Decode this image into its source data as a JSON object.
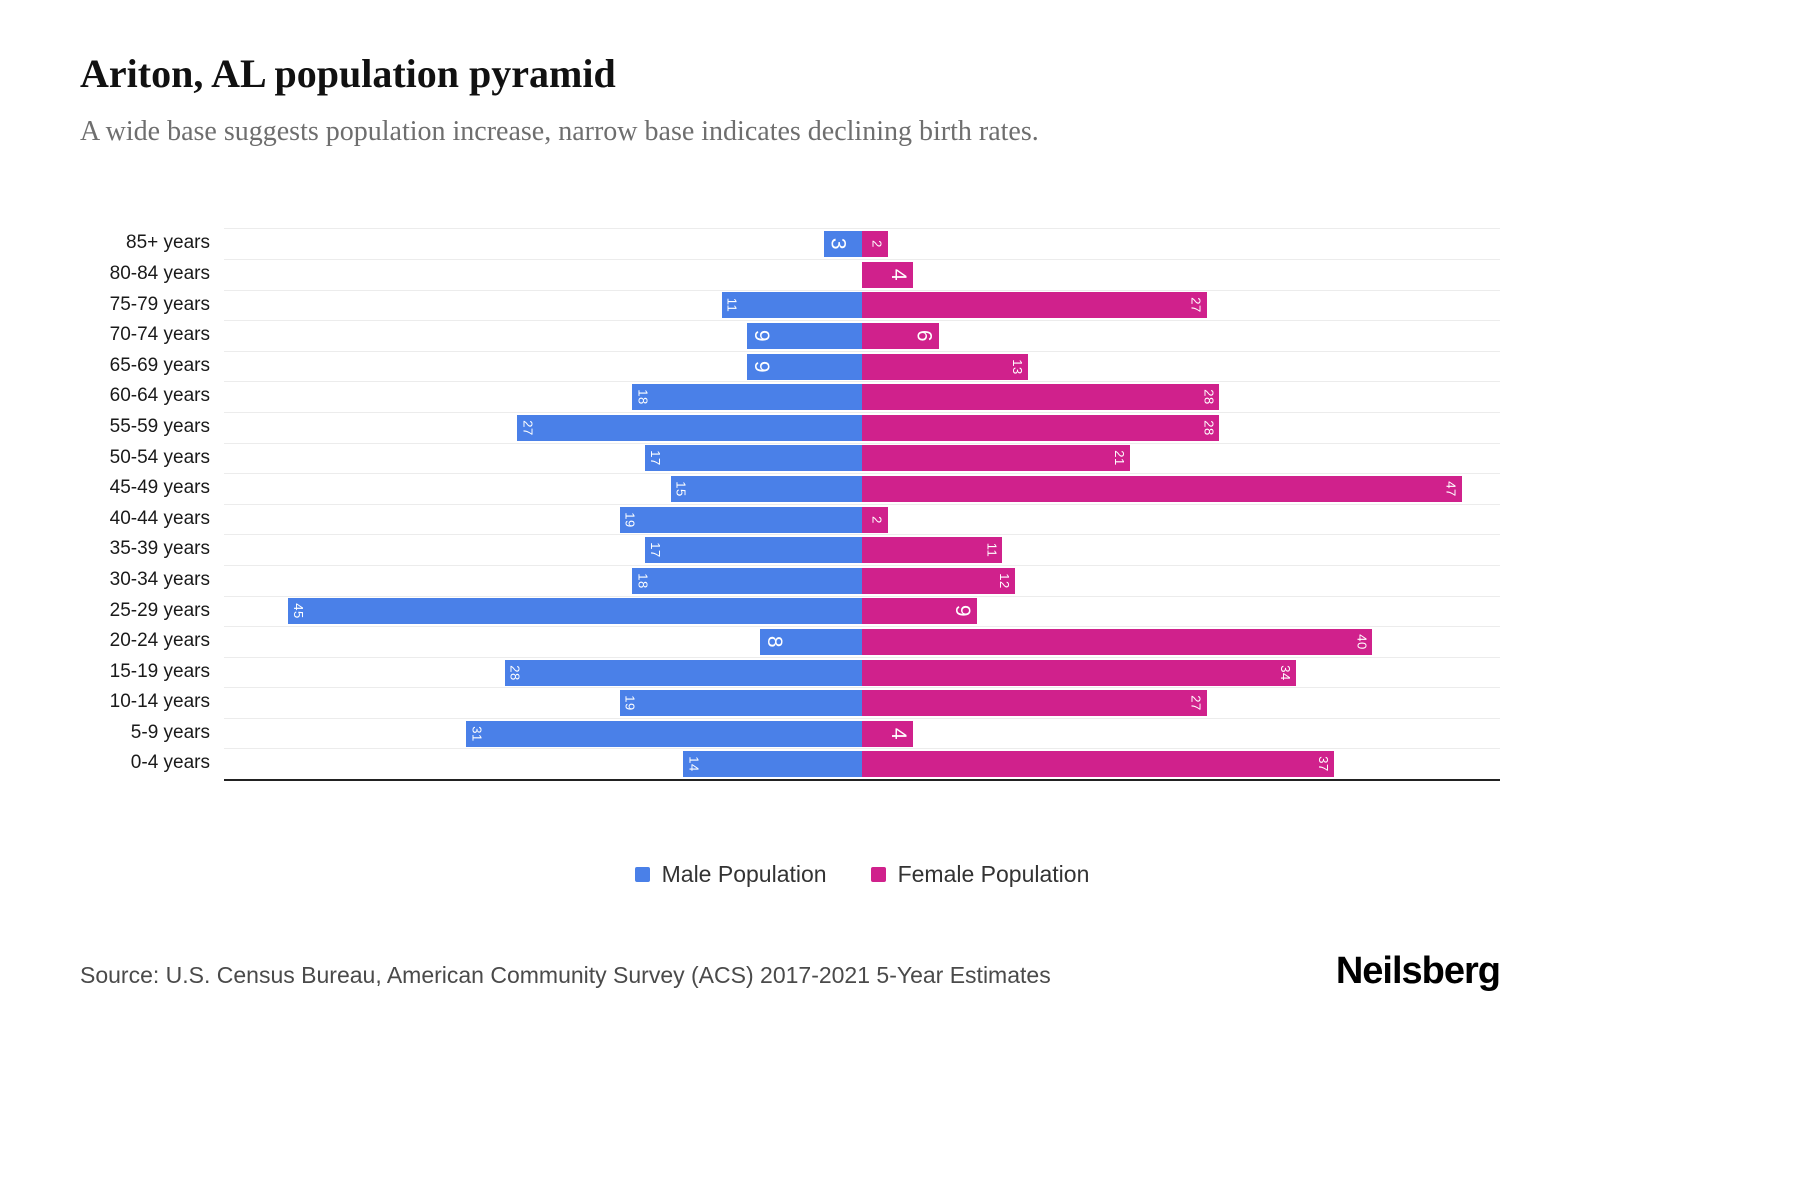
{
  "header": {
    "title": "Ariton, AL population pyramid",
    "subtitle": "A wide base suggests population increase, narrow base indicates declining birth rates."
  },
  "chart_data": {
    "type": "bar",
    "variant": "population-pyramid",
    "orientation": "horizontal",
    "categories": [
      "85+ years",
      "80-84 years",
      "75-79 years",
      "70-74 years",
      "65-69 years",
      "60-64 years",
      "55-59 years",
      "50-54 years",
      "45-49 years",
      "40-44 years",
      "35-39 years",
      "30-34 years",
      "25-29 years",
      "20-24 years",
      "15-19 years",
      "10-14 years",
      "5-9 years",
      "0-4 years"
    ],
    "series": [
      {
        "name": "Male Population",
        "color": "#4A80E8",
        "values": [
          3,
          0,
          11,
          9,
          9,
          18,
          27,
          17,
          15,
          19,
          17,
          18,
          45,
          8,
          28,
          19,
          31,
          14
        ]
      },
      {
        "name": "Female Population",
        "color": "#D0218C",
        "values": [
          2,
          4,
          27,
          6,
          13,
          28,
          28,
          21,
          47,
          2,
          11,
          12,
          9,
          40,
          34,
          27,
          4,
          37
        ]
      }
    ],
    "xlim": [
      0,
      50
    ],
    "grid": "horizontal",
    "gridline_color": "#ececec",
    "axis_line_color": "#222222",
    "value_labels": "inside-outer-end, rotated 90deg, white",
    "legend_position": "bottom"
  },
  "legend": {
    "male_label": "Male Population",
    "female_label": "Female Population"
  },
  "footer": {
    "source": "Source: U.S. Census Bureau, American Community Survey (ACS) 2017-2021 5-Year Estimates",
    "brand": "Neilsberg"
  }
}
